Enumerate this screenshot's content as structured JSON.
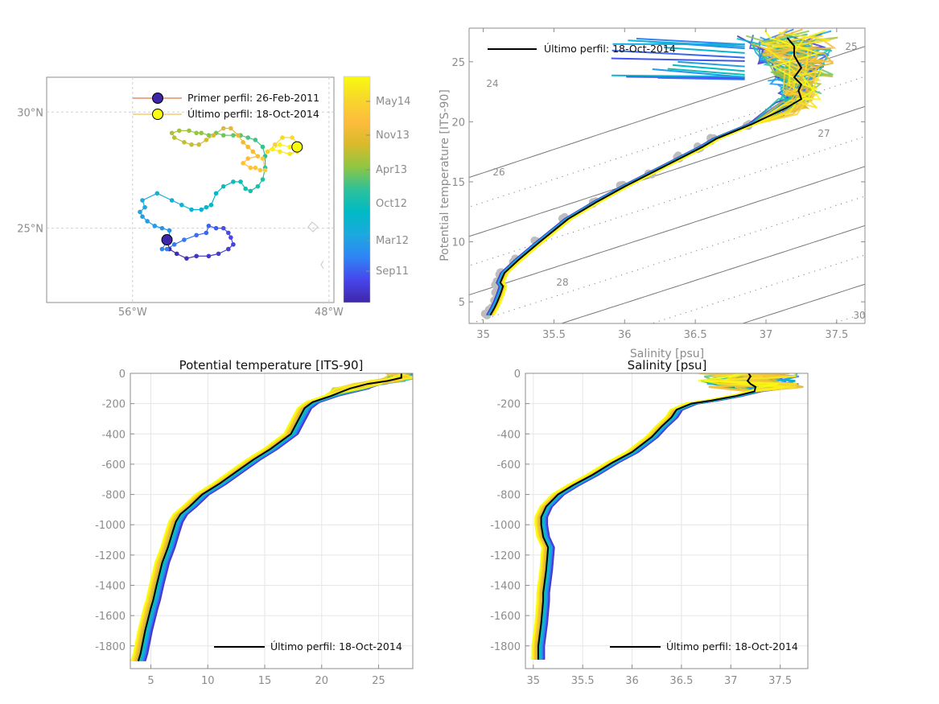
{
  "chart_data": [
    {
      "id": "map",
      "type": "scatter",
      "title": "",
      "xlabel": "",
      "ylabel": "",
      "xlim": [
        -59.5,
        -47.8
      ],
      "ylim": [
        21.8,
        31.5
      ],
      "xticks": [
        {
          "v": -56,
          "label": "56°W"
        },
        {
          "v": -48,
          "label": "48°W"
        }
      ],
      "yticks": [
        {
          "v": 25,
          "label": "25°N"
        },
        {
          "v": 30,
          "label": "30°N"
        }
      ],
      "grid": "dashed",
      "legend": {
        "placement": "top-right",
        "entries": [
          {
            "label": "Primer perfil: 26-Feb-2011",
            "line_color": "#d95319",
            "marker_color": "#3e26a8"
          },
          {
            "label": "Último perfil: 18-Oct-2014",
            "line_color": "#edb120",
            "marker_color": "#f9fb0e"
          }
        ]
      },
      "first_point": {
        "lon": -54.6,
        "lat": 24.5
      },
      "last_point": {
        "lon": -49.3,
        "lat": 28.5
      },
      "track": [
        [
          -54.6,
          24.5
        ],
        [
          -54.5,
          24.1
        ],
        [
          -54.2,
          23.9
        ],
        [
          -53.8,
          23.7
        ],
        [
          -53.4,
          23.8
        ],
        [
          -52.9,
          23.8
        ],
        [
          -52.5,
          23.9
        ],
        [
          -52.1,
          24.1
        ],
        [
          -51.9,
          24.3
        ],
        [
          -52.0,
          24.6
        ],
        [
          -52.1,
          24.8
        ],
        [
          -52.3,
          25.0
        ],
        [
          -52.6,
          25.0
        ],
        [
          -52.9,
          25.1
        ],
        [
          -53.0,
          24.8
        ],
        [
          -53.4,
          24.7
        ],
        [
          -53.9,
          24.5
        ],
        [
          -54.3,
          24.3
        ],
        [
          -54.6,
          24.1
        ],
        [
          -54.8,
          24.1
        ],
        [
          -54.5,
          24.6
        ],
        [
          -54.5,
          24.9
        ],
        [
          -54.8,
          25.0
        ],
        [
          -55.1,
          25.1
        ],
        [
          -55.4,
          25.3
        ],
        [
          -55.6,
          25.5
        ],
        [
          -55.7,
          25.7
        ],
        [
          -55.5,
          25.9
        ],
        [
          -55.6,
          26.2
        ],
        [
          -55.0,
          26.5
        ],
        [
          -54.4,
          26.2
        ],
        [
          -54.0,
          26.0
        ],
        [
          -53.6,
          25.8
        ],
        [
          -53.2,
          25.8
        ],
        [
          -53.0,
          25.9
        ],
        [
          -52.8,
          26.0
        ],
        [
          -52.6,
          26.5
        ],
        [
          -52.3,
          26.8
        ],
        [
          -51.9,
          27.0
        ],
        [
          -51.6,
          27.0
        ],
        [
          -51.4,
          26.7
        ],
        [
          -51.2,
          26.6
        ],
        [
          -50.9,
          26.8
        ],
        [
          -50.7,
          27.1
        ],
        [
          -50.6,
          27.6
        ],
        [
          -50.6,
          28.1
        ],
        [
          -50.7,
          28.5
        ],
        [
          -51.0,
          28.8
        ],
        [
          -51.3,
          28.9
        ],
        [
          -51.6,
          29.0
        ],
        [
          -51.9,
          29.0
        ],
        [
          -52.3,
          29.0
        ],
        [
          -52.6,
          29.1
        ],
        [
          -52.9,
          29.0
        ],
        [
          -53.2,
          29.1
        ],
        [
          -53.4,
          29.1
        ],
        [
          -53.7,
          29.2
        ],
        [
          -54.1,
          29.2
        ],
        [
          -54.4,
          29.1
        ],
        [
          -54.3,
          28.9
        ],
        [
          -53.9,
          28.7
        ],
        [
          -53.6,
          28.6
        ],
        [
          -53.3,
          28.6
        ],
        [
          -53.0,
          28.8
        ],
        [
          -52.7,
          29.0
        ],
        [
          -52.3,
          29.3
        ],
        [
          -52.0,
          29.3
        ],
        [
          -51.7,
          29.0
        ],
        [
          -51.5,
          28.7
        ],
        [
          -51.3,
          28.5
        ],
        [
          -51.1,
          28.3
        ],
        [
          -50.9,
          28.1
        ],
        [
          -51.3,
          28.0
        ],
        [
          -51.5,
          27.8
        ],
        [
          -51.2,
          27.6
        ],
        [
          -51.0,
          27.6
        ],
        [
          -50.8,
          27.5
        ],
        [
          -50.6,
          27.5
        ],
        [
          -50.7,
          28.0
        ],
        [
          -50.5,
          28.3
        ],
        [
          -50.2,
          28.6
        ],
        [
          -49.9,
          28.9
        ],
        [
          -49.5,
          28.9
        ],
        [
          -49.2,
          28.6
        ],
        [
          -49.3,
          28.3
        ],
        [
          -49.6,
          28.2
        ],
        [
          -50.0,
          28.3
        ],
        [
          -50.3,
          28.4
        ],
        [
          -50.0,
          28.6
        ],
        [
          -49.6,
          28.5
        ],
        [
          -49.3,
          28.5
        ]
      ]
    },
    {
      "id": "colorbar",
      "type": "heatmap",
      "title": "",
      "ticks": [
        "Sep11",
        "Mar12",
        "Oct12",
        "Apr13",
        "Nov13",
        "May14"
      ],
      "range": [
        "26-Feb-2011",
        "18-Oct-2014"
      ],
      "colormap": [
        "#3e26a8",
        "#4746eb",
        "#2f84f5",
        "#1ca9df",
        "#00bac5",
        "#2dc19a",
        "#8fc642",
        "#d9ba2b",
        "#fdbc3c",
        "#f8d72b",
        "#f9fb0e"
      ]
    },
    {
      "id": "ts-diagram",
      "type": "line",
      "title": "",
      "xlabel": "Salinity [psu]",
      "ylabel": "Potential temperature [ITS-90]",
      "xlim": [
        34.9,
        37.7
      ],
      "ylim": [
        3.2,
        27.8
      ],
      "xticks": [
        35,
        35.5,
        36,
        36.5,
        37,
        37.5
      ],
      "yticks": [
        5,
        10,
        15,
        20,
        25
      ],
      "grid": "off",
      "legend": {
        "placement": "top-left",
        "entries": [
          {
            "label": "Último perfil: 18-Oct-2014",
            "color": "#000000"
          }
        ]
      },
      "density_labels": [
        "24",
        "25",
        "26",
        "27",
        "28",
        "30"
      ],
      "last_profile": [
        [
          35.05,
          3.9
        ],
        [
          35.08,
          4.5
        ],
        [
          35.1,
          5.0
        ],
        [
          35.12,
          5.6
        ],
        [
          35.14,
          6.3
        ],
        [
          35.12,
          6.6
        ],
        [
          35.15,
          7.4
        ],
        [
          35.25,
          8.5
        ],
        [
          35.4,
          10.0
        ],
        [
          35.6,
          11.9
        ],
        [
          35.8,
          13.3
        ],
        [
          36.0,
          14.6
        ],
        [
          36.2,
          15.8
        ],
        [
          36.4,
          17.0
        ],
        [
          36.55,
          17.9
        ],
        [
          36.65,
          18.6
        ],
        [
          36.9,
          19.8
        ],
        [
          37.15,
          21.2
        ],
        [
          37.25,
          21.9
        ],
        [
          37.23,
          22.6
        ],
        [
          37.25,
          23.1
        ],
        [
          37.2,
          23.7
        ],
        [
          37.25,
          24.5
        ],
        [
          37.2,
          25.5
        ],
        [
          37.2,
          26.3
        ],
        [
          37.15,
          27.0
        ]
      ]
    },
    {
      "id": "temperature-profile",
      "type": "line",
      "title": "Potential temperature [ITS-90]",
      "xlabel": "",
      "ylabel": "",
      "xlim": [
        3.2,
        28
      ],
      "ylim": [
        -1950,
        0
      ],
      "xticks": [
        5,
        10,
        15,
        20,
        25
      ],
      "yticks": [
        0,
        -200,
        -400,
        -600,
        -800,
        -1000,
        -1200,
        -1400,
        -1600,
        -1800
      ],
      "grid": "on",
      "legend": {
        "placement": "bottom-right",
        "entries": [
          {
            "label": "Último perfil: 18-Oct-2014",
            "color": "#000000"
          }
        ]
      },
      "last_profile": [
        [
          27.0,
          0
        ],
        [
          27.0,
          -30
        ],
        [
          25.8,
          -50
        ],
        [
          24.0,
          -70
        ],
        [
          22.5,
          -100
        ],
        [
          20.8,
          -150
        ],
        [
          19.2,
          -190
        ],
        [
          18.5,
          -230
        ],
        [
          18.0,
          -300
        ],
        [
          17.3,
          -400
        ],
        [
          15.5,
          -500
        ],
        [
          14.0,
          -570
        ],
        [
          12.5,
          -650
        ],
        [
          11.0,
          -730
        ],
        [
          9.5,
          -800
        ],
        [
          8.4,
          -880
        ],
        [
          7.6,
          -930
        ],
        [
          7.2,
          -980
        ],
        [
          6.9,
          -1050
        ],
        [
          6.5,
          -1150
        ],
        [
          6.0,
          -1250
        ],
        [
          5.5,
          -1400
        ],
        [
          5.2,
          -1500
        ],
        [
          5.0,
          -1550
        ],
        [
          4.5,
          -1700
        ],
        [
          4.1,
          -1850
        ],
        [
          3.9,
          -1900
        ]
      ]
    },
    {
      "id": "salinity-profile",
      "type": "line",
      "title": "Salinity [psu]",
      "xlabel": "",
      "ylabel": "",
      "xlim": [
        34.92,
        37.78
      ],
      "ylim": [
        -1950,
        0
      ],
      "xticks": [
        35,
        35.5,
        36,
        36.5,
        37,
        37.5
      ],
      "yticks": [
        0,
        -200,
        -400,
        -600,
        -800,
        -1000,
        -1200,
        -1400,
        -1600,
        -1800
      ],
      "grid": "on",
      "legend": {
        "placement": "bottom-right",
        "entries": [
          {
            "label": "Último perfil: 18-Oct-2014",
            "color": "#000000"
          }
        ]
      },
      "last_profile": [
        [
          37.18,
          0
        ],
        [
          37.2,
          -20
        ],
        [
          37.17,
          -50
        ],
        [
          37.2,
          -70
        ],
        [
          37.25,
          -90
        ],
        [
          37.24,
          -120
        ],
        [
          37.05,
          -150
        ],
        [
          36.8,
          -180
        ],
        [
          36.6,
          -200
        ],
        [
          36.45,
          -240
        ],
        [
          36.4,
          -290
        ],
        [
          36.3,
          -350
        ],
        [
          36.2,
          -420
        ],
        [
          36.0,
          -520
        ],
        [
          35.8,
          -590
        ],
        [
          35.6,
          -670
        ],
        [
          35.4,
          -740
        ],
        [
          35.25,
          -800
        ],
        [
          35.13,
          -880
        ],
        [
          35.08,
          -950
        ],
        [
          35.08,
          -1000
        ],
        [
          35.1,
          -1080
        ],
        [
          35.15,
          -1150
        ],
        [
          35.13,
          -1300
        ],
        [
          35.1,
          -1450
        ],
        [
          35.1,
          -1500
        ],
        [
          35.08,
          -1650
        ],
        [
          35.05,
          -1800
        ],
        [
          35.05,
          -1890
        ]
      ]
    }
  ]
}
